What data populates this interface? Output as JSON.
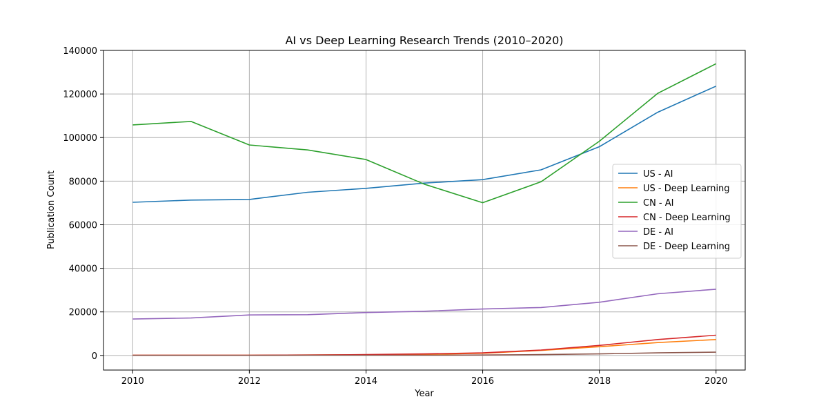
{
  "chart_data": {
    "type": "line",
    "title": "AI vs Deep Learning Research Trends (2010–2020)",
    "xlabel": "Year",
    "ylabel": "Publication Count",
    "xlim": [
      2009.5,
      2020.5
    ],
    "ylim": [
      -6700,
      140000
    ],
    "xticks": [
      2010,
      2012,
      2014,
      2016,
      2018,
      2020
    ],
    "yticks": [
      0,
      20000,
      40000,
      60000,
      80000,
      100000,
      120000,
      140000
    ],
    "grid": true,
    "legend_position": "center-right",
    "x": [
      2010,
      2011,
      2012,
      2013,
      2014,
      2015,
      2016,
      2017,
      2018,
      2019,
      2020
    ],
    "series": [
      {
        "name": "US - AI",
        "color": "#1f77b4",
        "values": [
          70300,
          71300,
          71600,
          74900,
          76700,
          79100,
          80700,
          85200,
          95800,
          111600,
          123600
        ]
      },
      {
        "name": "US - Deep Learning",
        "color": "#ff7f0e",
        "values": [
          100,
          100,
          100,
          200,
          300,
          500,
          1000,
          2300,
          4000,
          5900,
          7300
        ]
      },
      {
        "name": "CN - AI",
        "color": "#2ca02c",
        "values": [
          105800,
          107400,
          96600,
          94300,
          89900,
          78600,
          70100,
          79700,
          98300,
          120300,
          133900
        ]
      },
      {
        "name": "CN - Deep Learning",
        "color": "#d62728",
        "values": [
          100,
          100,
          100,
          200,
          400,
          700,
          1200,
          2500,
          4600,
          7300,
          9300
        ]
      },
      {
        "name": "DE - AI",
        "color": "#9467bd",
        "values": [
          16700,
          17200,
          18600,
          18700,
          19700,
          20300,
          21300,
          22000,
          24400,
          28300,
          30400
        ]
      },
      {
        "name": "DE - Deep Learning",
        "color": "#8c564b",
        "values": [
          50,
          50,
          50,
          100,
          100,
          100,
          200,
          400,
          700,
          1200,
          1500
        ]
      }
    ]
  }
}
